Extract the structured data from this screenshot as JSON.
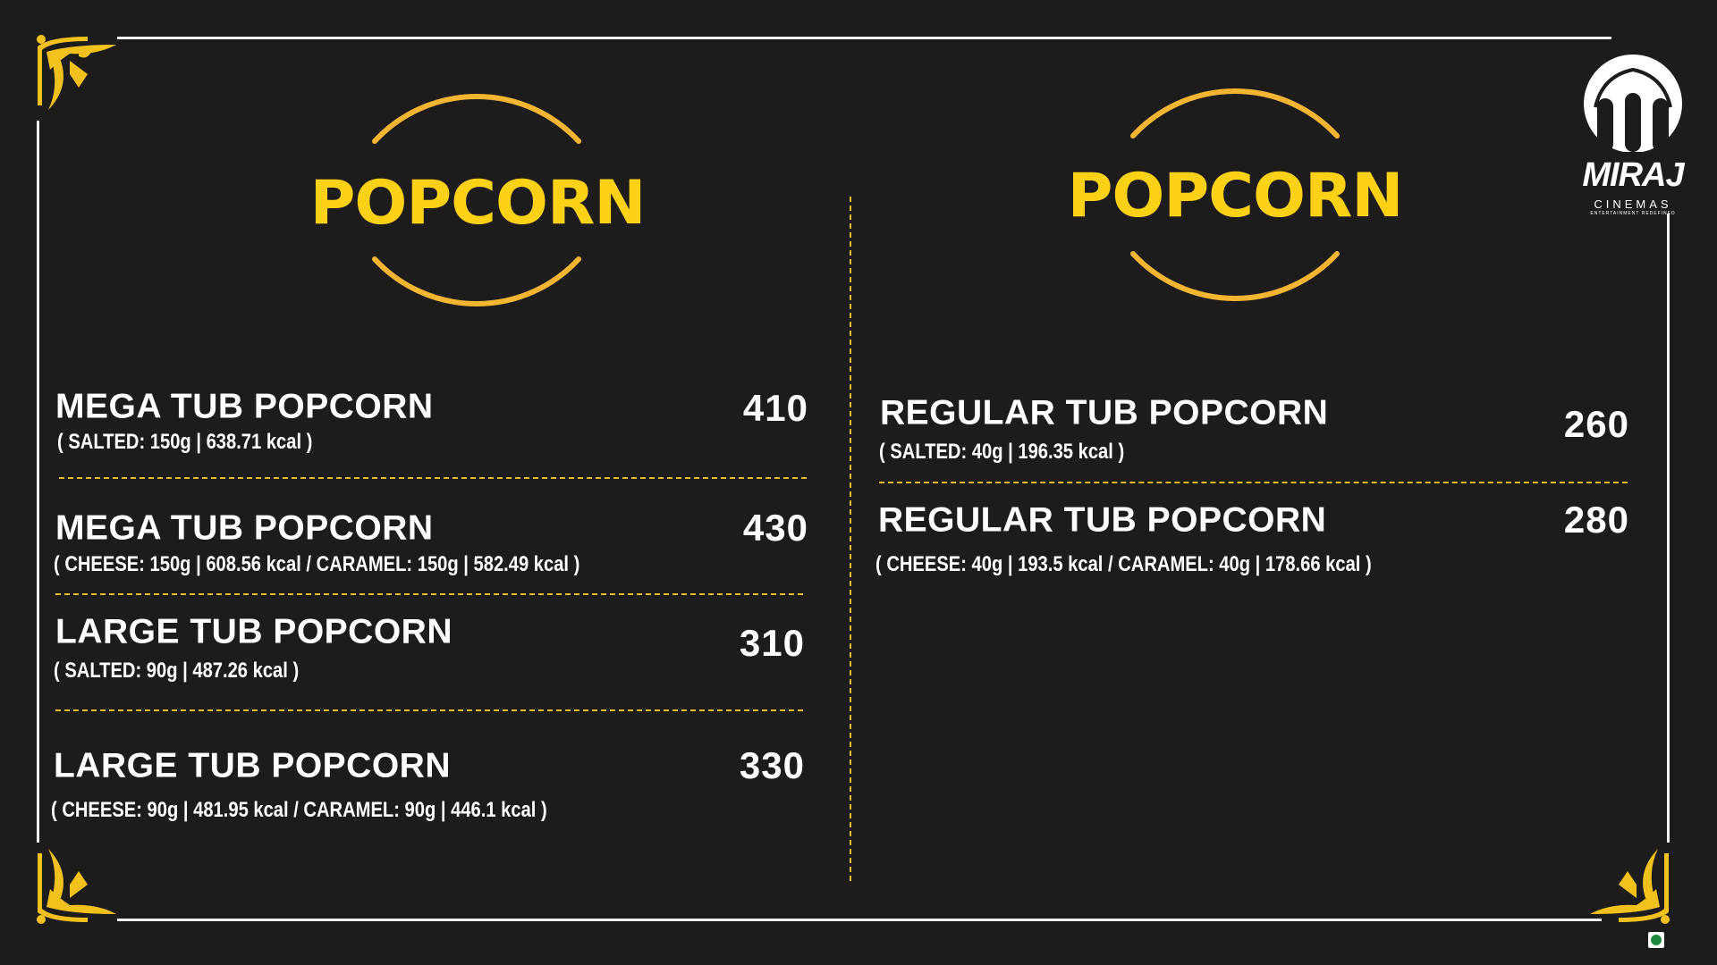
{
  "brand": {
    "name": "MIRAJ",
    "subtitle": "CINEMAS",
    "tagline": "ENTERTAINMENT REDEFINED"
  },
  "colors": {
    "background": "#1d1c1a",
    "accent": "#fcd116",
    "ring": "#f4b533",
    "text": "#ffffff",
    "veg_mark": "#1e8a3c"
  },
  "left_panel": {
    "heading": "POPCORN",
    "items": [
      {
        "name": "MEGA TUB POPCORN",
        "details": "( SALTED: 150g | 638.71 kcal )",
        "price": "410"
      },
      {
        "name": "MEGA TUB POPCORN",
        "details": "( CHEESE: 150g | 608.56 kcal  /  CARAMEL: 150g | 582.49 kcal )",
        "price": "430"
      },
      {
        "name": "LARGE TUB POPCORN",
        "details": "( SALTED: 90g | 487.26 kcal )",
        "price": "310"
      },
      {
        "name": "LARGE TUB POPCORN",
        "details": "( CHEESE: 90g | 481.95 kcal  /  CARAMEL: 90g | 446.1 kcal )",
        "price": "330"
      }
    ]
  },
  "right_panel": {
    "heading": "POPCORN",
    "items": [
      {
        "name": "REGULAR TUB POPCORN",
        "details": "( SALTED: 40g | 196.35 kcal )",
        "price": "260"
      },
      {
        "name": "REGULAR TUB POPCORN",
        "details": "( CHEESE: 40g | 193.5 kcal  /  CARAMEL: 40g | 178.66 kcal )",
        "price": "280"
      }
    ]
  },
  "icons": {
    "corner": "ornament-flourish-icon",
    "veg": "veg-mark-icon",
    "logo": "miraj-logo"
  }
}
